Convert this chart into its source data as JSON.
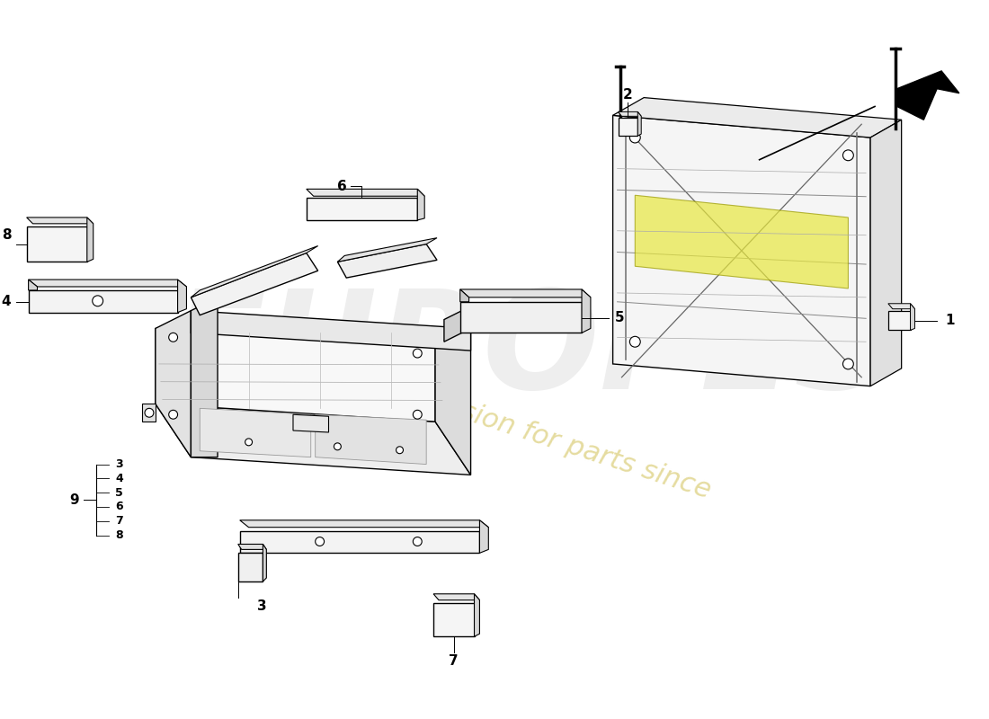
{
  "background_color": "#ffffff",
  "watermark_eu_color": "#d8d8d8",
  "watermark_text_color": "#e8d890",
  "fig_w": 11.0,
  "fig_h": 8.0,
  "dpi": 100,
  "parts": {
    "label_fontsize": 11,
    "label_color": "#000000"
  }
}
